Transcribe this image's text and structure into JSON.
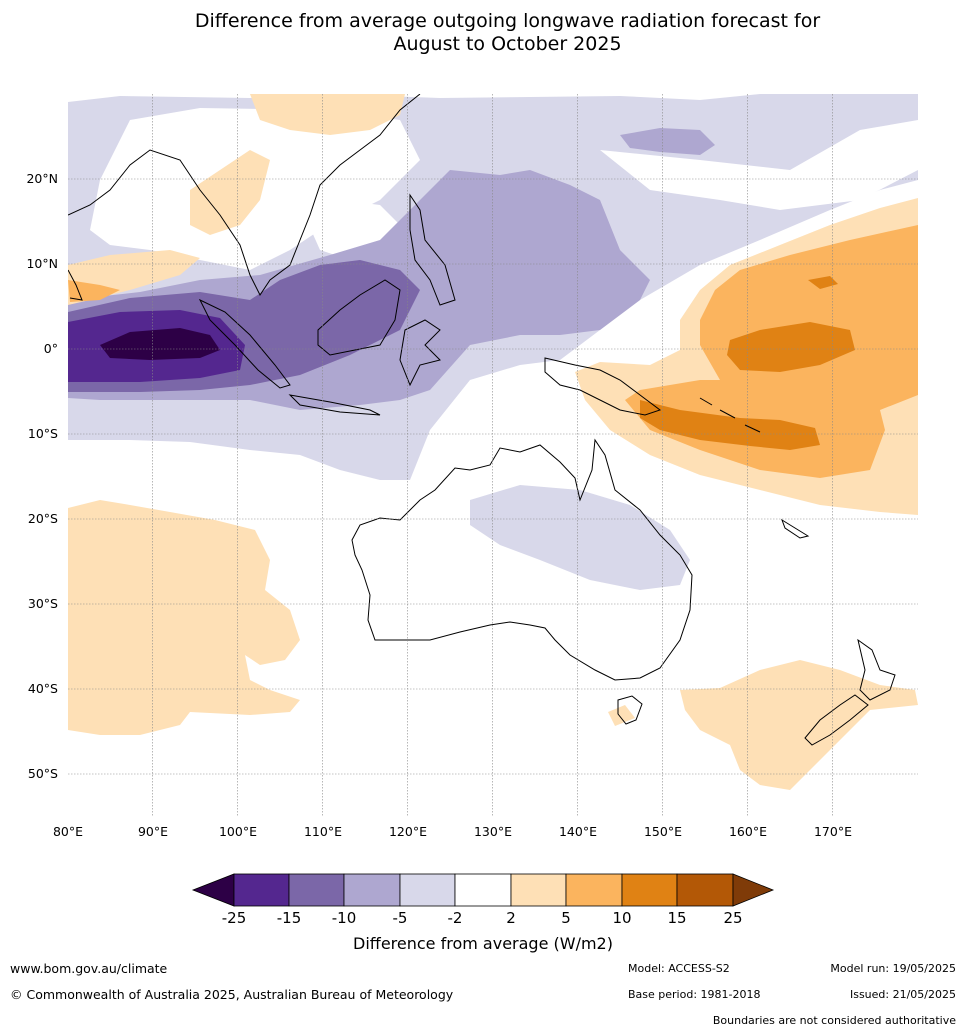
{
  "title": "Difference from average outgoing longwave radiation forecast for August to October 2025",
  "title_line1": "Difference from average outgoing longwave radiation forecast for",
  "title_line2": "August to October 2025",
  "map": {
    "lon_range": [
      80,
      180
    ],
    "lat_range": [
      -55,
      30
    ],
    "lon_ticks": [
      "80°E",
      "90°E",
      "100°E",
      "110°E",
      "120°E",
      "130°E",
      "140°E",
      "150°E",
      "160°E",
      "170°E"
    ],
    "lat_ticks": [
      "20°N",
      "10°N",
      "0°",
      "10°S",
      "20°S",
      "30°S",
      "40°S",
      "50°S"
    ],
    "gridlines": true,
    "anomaly_regions": [
      {
        "name": "Indian Ocean strong negative core",
        "center": "0°, 90-100°E",
        "class": "-25 to -15"
      },
      {
        "name": "Maritime Continent negative",
        "center": "0-10°N, 100-140°E",
        "class": "-15 to -5"
      },
      {
        "name": "Western Pacific positive",
        "center": "0-10°N, 150-180°E",
        "class": "5 to 15"
      },
      {
        "name": "Melanesia positive",
        "center": "5-15°S, 145-170°E",
        "class": "5 to 15"
      },
      {
        "name": "Central Australia weak negative",
        "center": "20-30°S, 130-150°E",
        "class": "-5 to -2"
      },
      {
        "name": "Southern Indian Ocean weak positive",
        "center": "20-45°S, 80-95°E",
        "class": "2 to 5"
      },
      {
        "name": "Tasman Sea weak positive",
        "center": "38-52°S, 150-170°E",
        "class": "2 to 5"
      }
    ]
  },
  "colorbar": {
    "title": "Difference from average (W/m2)",
    "ticks": [
      "-25",
      "-15",
      "-10",
      "-5",
      "-2",
      "2",
      "5",
      "10",
      "15",
      "25"
    ],
    "colors": [
      "#2d0046",
      "#54278f",
      "#7b67a8",
      "#aea7d0",
      "#d8d8ea",
      "#ffffff",
      "#fee0b6",
      "#fbb45e",
      "#e08214",
      "#b35806",
      "#7f3b08"
    ]
  },
  "footer": {
    "url": "www.bom.gov.au/climate",
    "copyright": "© Commonwealth of Australia 2025, Australian Bureau of Meteorology",
    "model": "Model: ACCESS-S2",
    "base_period": "Base period: 1981-2018",
    "model_run": "Model run: 19/05/2025",
    "issued": "Issued: 21/05/2025",
    "disclaimer": "Boundaries are not considered authoritative"
  }
}
